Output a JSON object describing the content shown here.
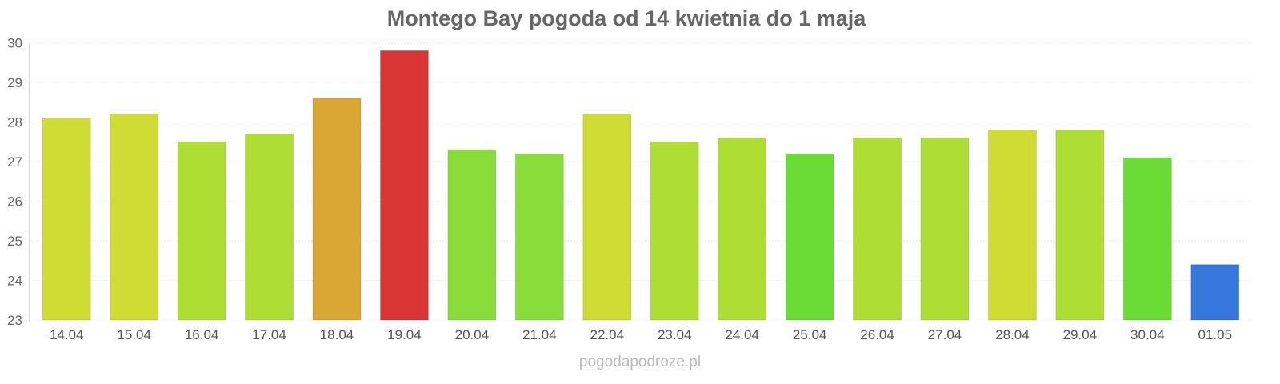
{
  "chart_data": {
    "type": "bar",
    "title": "Montego Bay pogoda od 14 kwietnia do 1 maja",
    "xlabel": "",
    "ylabel": "",
    "ylim": [
      23,
      30
    ],
    "yticks": [
      "23",
      "24",
      "25",
      "26",
      "27",
      "28",
      "29",
      "30"
    ],
    "grid": true,
    "categories": [
      "14.04",
      "15.04",
      "16.04",
      "17.04",
      "18.04",
      "19.04",
      "20.04",
      "21.04",
      "22.04",
      "23.04",
      "24.04",
      "25.04",
      "26.04",
      "27.04",
      "28.04",
      "29.04",
      "30.04",
      "01.05"
    ],
    "values": [
      28.1,
      28.2,
      27.5,
      27.7,
      28.6,
      29.8,
      27.3,
      27.2,
      28.2,
      27.5,
      27.6,
      27.2,
      27.6,
      27.6,
      27.8,
      27.8,
      27.1,
      24.4
    ],
    "colors": [
      "#cfdc33",
      "#cfdc33",
      "#aedd33",
      "#aedd33",
      "#dba734",
      "#da3535",
      "#8add38",
      "#8add38",
      "#cfdc33",
      "#aedd33",
      "#aedd33",
      "#6bdc36",
      "#aedd33",
      "#aedd33",
      "#cfdc33",
      "#aedd33",
      "#6bdc36",
      "#3577dc"
    ]
  },
  "footer": {
    "credit": "pogodapodroze.pl"
  }
}
